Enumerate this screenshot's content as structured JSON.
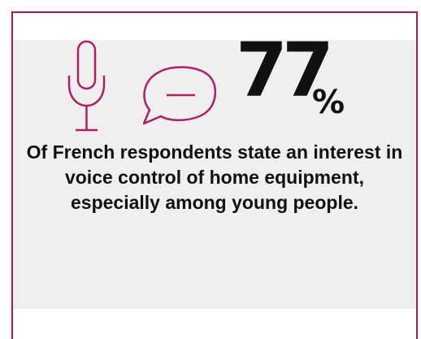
{
  "stat": {
    "value": "77",
    "unit": "%",
    "statement": "Of French respondents state an interest in voice control of home equipment, especially among young people."
  },
  "icons": [
    "microphone-icon",
    "speech-bubble-icon"
  ],
  "colors": {
    "accent": "#a51a5a",
    "icon": "#b01e66",
    "panel": "#efefef",
    "text": "#111111"
  }
}
